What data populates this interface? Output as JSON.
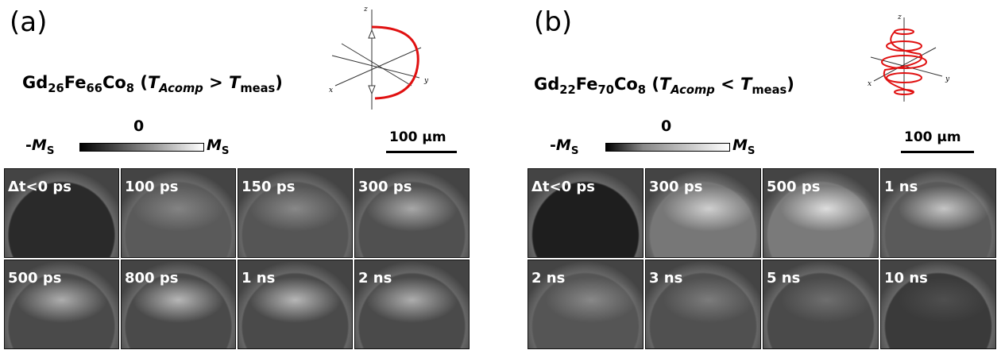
{
  "panels": [
    {
      "label": "(a)",
      "formula": [
        {
          "text": "Gd"
        },
        {
          "text": "26",
          "style": "sub"
        },
        {
          "text": "Fe"
        },
        {
          "text": "66",
          "style": "sub"
        },
        {
          "text": "Co"
        },
        {
          "text": "8",
          "style": "sub"
        },
        {
          "text": " ("
        },
        {
          "text": "T",
          "style": "i"
        },
        {
          "text": "Acomp",
          "style": "isub"
        },
        {
          "text": " > "
        },
        {
          "text": "T",
          "style": "i"
        },
        {
          "text": "meas",
          "style": "sub"
        },
        {
          "text": ")"
        }
      ],
      "colorbar": {
        "left": [
          {
            "text": "-"
          },
          {
            "text": "M",
            "style": "i"
          },
          {
            "text": "S",
            "style": "sub"
          }
        ],
        "center": "0",
        "right": [
          {
            "text": "M",
            "style": "i"
          },
          {
            "text": "S",
            "style": "sub"
          }
        ]
      },
      "scale_bar": "100 μm",
      "axes": {
        "x": "x",
        "y": "y",
        "z": "z"
      },
      "frames": [
        "Δt<0 ps",
        "100 ps",
        "150 ps",
        "300 ps",
        "500 ps",
        "800 ps",
        "1 ns",
        "2 ns"
      ]
    },
    {
      "label": "(b)",
      "formula": [
        {
          "text": "Gd"
        },
        {
          "text": "22",
          "style": "sub"
        },
        {
          "text": "Fe"
        },
        {
          "text": "70",
          "style": "sub"
        },
        {
          "text": "Co"
        },
        {
          "text": "8",
          "style": "sub"
        },
        {
          "text": " ("
        },
        {
          "text": "T",
          "style": "i"
        },
        {
          "text": "Acomp",
          "style": "isub"
        },
        {
          "text": " < "
        },
        {
          "text": "T",
          "style": "i"
        },
        {
          "text": "meas",
          "style": "sub"
        },
        {
          "text": ")"
        }
      ],
      "colorbar": {
        "left": [
          {
            "text": "-"
          },
          {
            "text": "M",
            "style": "i"
          },
          {
            "text": "S",
            "style": "sub"
          }
        ],
        "center": "0",
        "right": [
          {
            "text": "M",
            "style": "i"
          },
          {
            "text": "S",
            "style": "sub"
          }
        ]
      },
      "scale_bar": "100 μm",
      "axes": {
        "x": "x",
        "y": "y",
        "z": "z"
      },
      "frames": [
        "Δt<0 ps",
        "300 ps",
        "500 ps",
        "1 ns",
        "2 ns",
        "3 ns",
        "5 ns",
        "10 ns"
      ]
    }
  ]
}
